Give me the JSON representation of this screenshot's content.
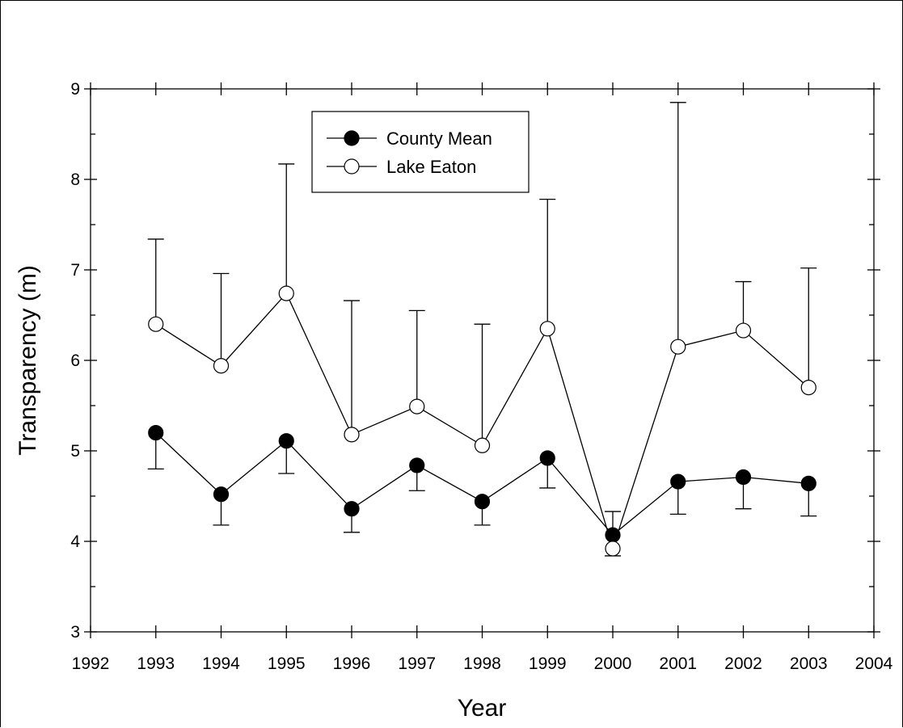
{
  "chart_data": {
    "type": "line",
    "xlabel": "Year",
    "ylabel": "Transparency (m)",
    "xlim": [
      1992,
      2004
    ],
    "ylim": [
      3,
      9
    ],
    "x_ticks": [
      "1992",
      "1993",
      "1994",
      "1995",
      "1996",
      "1997",
      "1998",
      "1999",
      "2000",
      "2001",
      "2002",
      "2003",
      "2004"
    ],
    "y_ticks": [
      "3",
      "4",
      "5",
      "6",
      "7",
      "8",
      "9"
    ],
    "grid": false,
    "legend_position": "top-center",
    "x": [
      1993,
      1994,
      1995,
      1996,
      1997,
      1998,
      1999,
      2000,
      2001,
      2002,
      2003
    ],
    "series": [
      {
        "name": "County Mean",
        "marker": "filled-circle",
        "values": [
          5.2,
          4.52,
          5.11,
          4.36,
          4.84,
          4.44,
          4.92,
          4.07,
          4.66,
          4.71,
          4.64
        ],
        "error_lower": [
          4.8,
          4.18,
          4.75,
          4.1,
          4.56,
          4.18,
          4.59,
          3.84,
          4.3,
          4.36,
          4.28
        ],
        "error_upper": [
          null,
          null,
          null,
          null,
          null,
          null,
          null,
          4.33,
          null,
          null,
          null
        ]
      },
      {
        "name": "Lake Eaton",
        "marker": "open-circle",
        "values": [
          6.4,
          5.94,
          6.74,
          5.18,
          5.49,
          5.06,
          6.35,
          3.92,
          6.15,
          6.33,
          5.7
        ],
        "error_upper": [
          7.34,
          6.96,
          8.17,
          6.66,
          6.55,
          6.4,
          7.78,
          null,
          8.85,
          6.87,
          7.02
        ],
        "error_lower": [
          null,
          null,
          null,
          null,
          null,
          null,
          null,
          null,
          null,
          null,
          null
        ]
      }
    ],
    "colors": {
      "line": "#000000",
      "filled_marker": "#000000",
      "open_marker": "#ffffff"
    }
  }
}
